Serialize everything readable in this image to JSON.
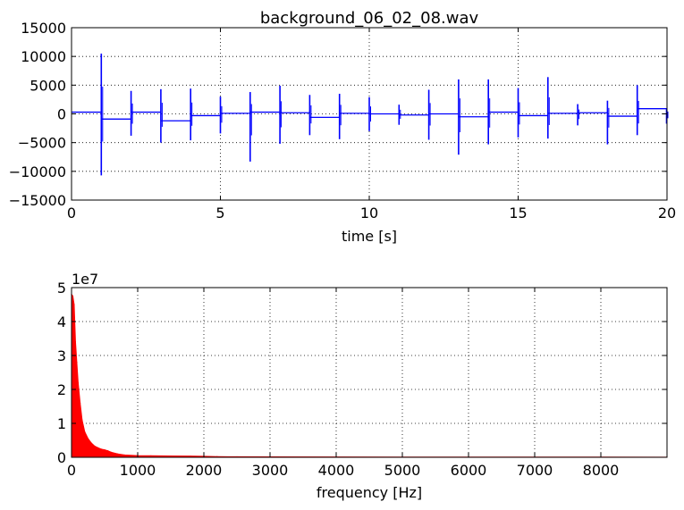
{
  "chart_data": [
    {
      "type": "line",
      "title": "background_06_02_08.wav",
      "xlabel": "time [s]",
      "ylabel": "",
      "xlim": [
        0,
        20
      ],
      "ylim": [
        -15000,
        15000
      ],
      "xticks": [
        0,
        5,
        10,
        15,
        20
      ],
      "yticks": [
        -15000,
        -10000,
        -5000,
        0,
        5000,
        10000,
        15000
      ],
      "grid": true,
      "color": "#0000ff",
      "baseline_segments": [
        {
          "x0": 0,
          "x1": 1,
          "y": 300
        },
        {
          "x0": 1,
          "x1": 2,
          "y": -900
        },
        {
          "x0": 2,
          "x1": 3,
          "y": 300
        },
        {
          "x0": 3,
          "x1": 4,
          "y": -1200
        },
        {
          "x0": 4,
          "x1": 5,
          "y": -300
        },
        {
          "x0": 5,
          "x1": 6,
          "y": 100
        },
        {
          "x0": 6,
          "x1": 7,
          "y": 300
        },
        {
          "x0": 7,
          "x1": 8,
          "y": 200
        },
        {
          "x0": 8,
          "x1": 9,
          "y": -600
        },
        {
          "x0": 9,
          "x1": 10,
          "y": 100
        },
        {
          "x0": 10,
          "x1": 11,
          "y": 0
        },
        {
          "x0": 11,
          "x1": 12,
          "y": -200
        },
        {
          "x0": 12,
          "x1": 13,
          "y": 0
        },
        {
          "x0": 13,
          "x1": 14,
          "y": -500
        },
        {
          "x0": 14,
          "x1": 15,
          "y": 300
        },
        {
          "x0": 15,
          "x1": 16,
          "y": -300
        },
        {
          "x0": 16,
          "x1": 17,
          "y": 100
        },
        {
          "x0": 17,
          "x1": 18,
          "y": 200
        },
        {
          "x0": 18,
          "x1": 19,
          "y": -400
        },
        {
          "x0": 19,
          "x1": 20,
          "y": 900
        }
      ],
      "spikes": [
        {
          "x": 1.0,
          "min": -10700,
          "max": 10500
        },
        {
          "x": 2.0,
          "min": -3800,
          "max": 4000
        },
        {
          "x": 3.0,
          "min": -5000,
          "max": 4300
        },
        {
          "x": 4.0,
          "min": -4600,
          "max": 4400
        },
        {
          "x": 5.0,
          "min": -3400,
          "max": 3000
        },
        {
          "x": 6.0,
          "min": -8300,
          "max": 3800
        },
        {
          "x": 7.0,
          "min": -5200,
          "max": 4900
        },
        {
          "x": 8.0,
          "min": -3700,
          "max": 3300
        },
        {
          "x": 9.0,
          "min": -4400,
          "max": 3500
        },
        {
          "x": 10.0,
          "min": -3000,
          "max": 2900
        },
        {
          "x": 11.0,
          "min": -1900,
          "max": 1600
        },
        {
          "x": 12.0,
          "min": -4500,
          "max": 4200
        },
        {
          "x": 13.0,
          "min": -7100,
          "max": 6000
        },
        {
          "x": 14.0,
          "min": -5300,
          "max": 6000
        },
        {
          "x": 15.0,
          "min": -4100,
          "max": 4500
        },
        {
          "x": 16.0,
          "min": -4300,
          "max": 6400
        },
        {
          "x": 17.0,
          "min": -2000,
          "max": 1700
        },
        {
          "x": 18.0,
          "min": -5300,
          "max": 2300
        },
        {
          "x": 19.0,
          "min": -3700,
          "max": 5000
        },
        {
          "x": 20.0,
          "min": -1700,
          "max": 900
        }
      ]
    },
    {
      "type": "area",
      "title": "",
      "xlabel": "frequency [Hz]",
      "ylabel": "",
      "y_multiplier": "1e7",
      "xlim": [
        0,
        9000
      ],
      "ylim": [
        0,
        5
      ],
      "xticks": [
        0,
        1000,
        2000,
        3000,
        4000,
        5000,
        6000,
        7000,
        8000
      ],
      "yticks": [
        0,
        1,
        2,
        3,
        4,
        5
      ],
      "grid": true,
      "color": "#ff0000",
      "x": [
        0,
        20,
        40,
        60,
        80,
        100,
        130,
        160,
        200,
        250,
        300,
        350,
        400,
        450,
        500,
        550,
        600,
        700,
        800,
        1000,
        1200,
        1500,
        1800,
        2000,
        2200,
        2500,
        3000,
        4000,
        5000,
        6000,
        7000,
        8000,
        9000
      ],
      "y": [
        4.8,
        4.75,
        4.5,
        3.4,
        2.8,
        2.2,
        1.6,
        1.1,
        0.75,
        0.55,
        0.42,
        0.33,
        0.28,
        0.24,
        0.22,
        0.19,
        0.15,
        0.1,
        0.07,
        0.05,
        0.045,
        0.04,
        0.035,
        0.03,
        0.02,
        0.015,
        0.012,
        0.01,
        0.008,
        0.007,
        0.006,
        0.005,
        0.004
      ]
    }
  ]
}
